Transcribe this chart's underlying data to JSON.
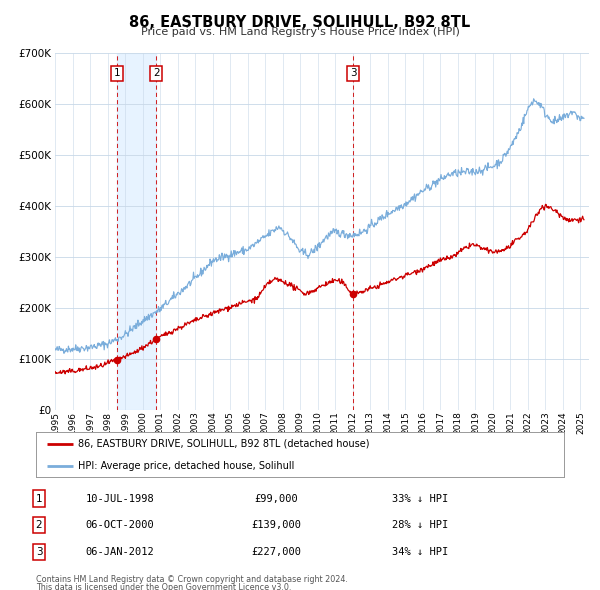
{
  "title": "86, EASTBURY DRIVE, SOLIHULL, B92 8TL",
  "subtitle": "Price paid vs. HM Land Registry's House Price Index (HPI)",
  "legend_label_red": "86, EASTBURY DRIVE, SOLIHULL, B92 8TL (detached house)",
  "legend_label_blue": "HPI: Average price, detached house, Solihull",
  "transactions": [
    {
      "num": 1,
      "date": "10-JUL-1998",
      "price": "£99,000",
      "pct": "33% ↓ HPI",
      "year": 1998.53,
      "val": 99000
    },
    {
      "num": 2,
      "date": "06-OCT-2000",
      "price": "£139,000",
      "pct": "28% ↓ HPI",
      "year": 2000.77,
      "val": 139000
    },
    {
      "num": 3,
      "date": "06-JAN-2012",
      "price": "£227,000",
      "pct": "34% ↓ HPI",
      "year": 2012.01,
      "val": 227000
    }
  ],
  "footnote1": "Contains HM Land Registry data © Crown copyright and database right 2024.",
  "footnote2": "This data is licensed under the Open Government Licence v3.0.",
  "red_color": "#cc0000",
  "blue_color": "#7aaddb",
  "vline_color": "#cc0000",
  "shade_color": "#ddeeff",
  "ylim": [
    0,
    700000
  ],
  "xlim_start": 1995.0,
  "xlim_end": 2025.5,
  "plot_bg_color": "#ffffff",
  "grid_color": "#c8d8e8"
}
